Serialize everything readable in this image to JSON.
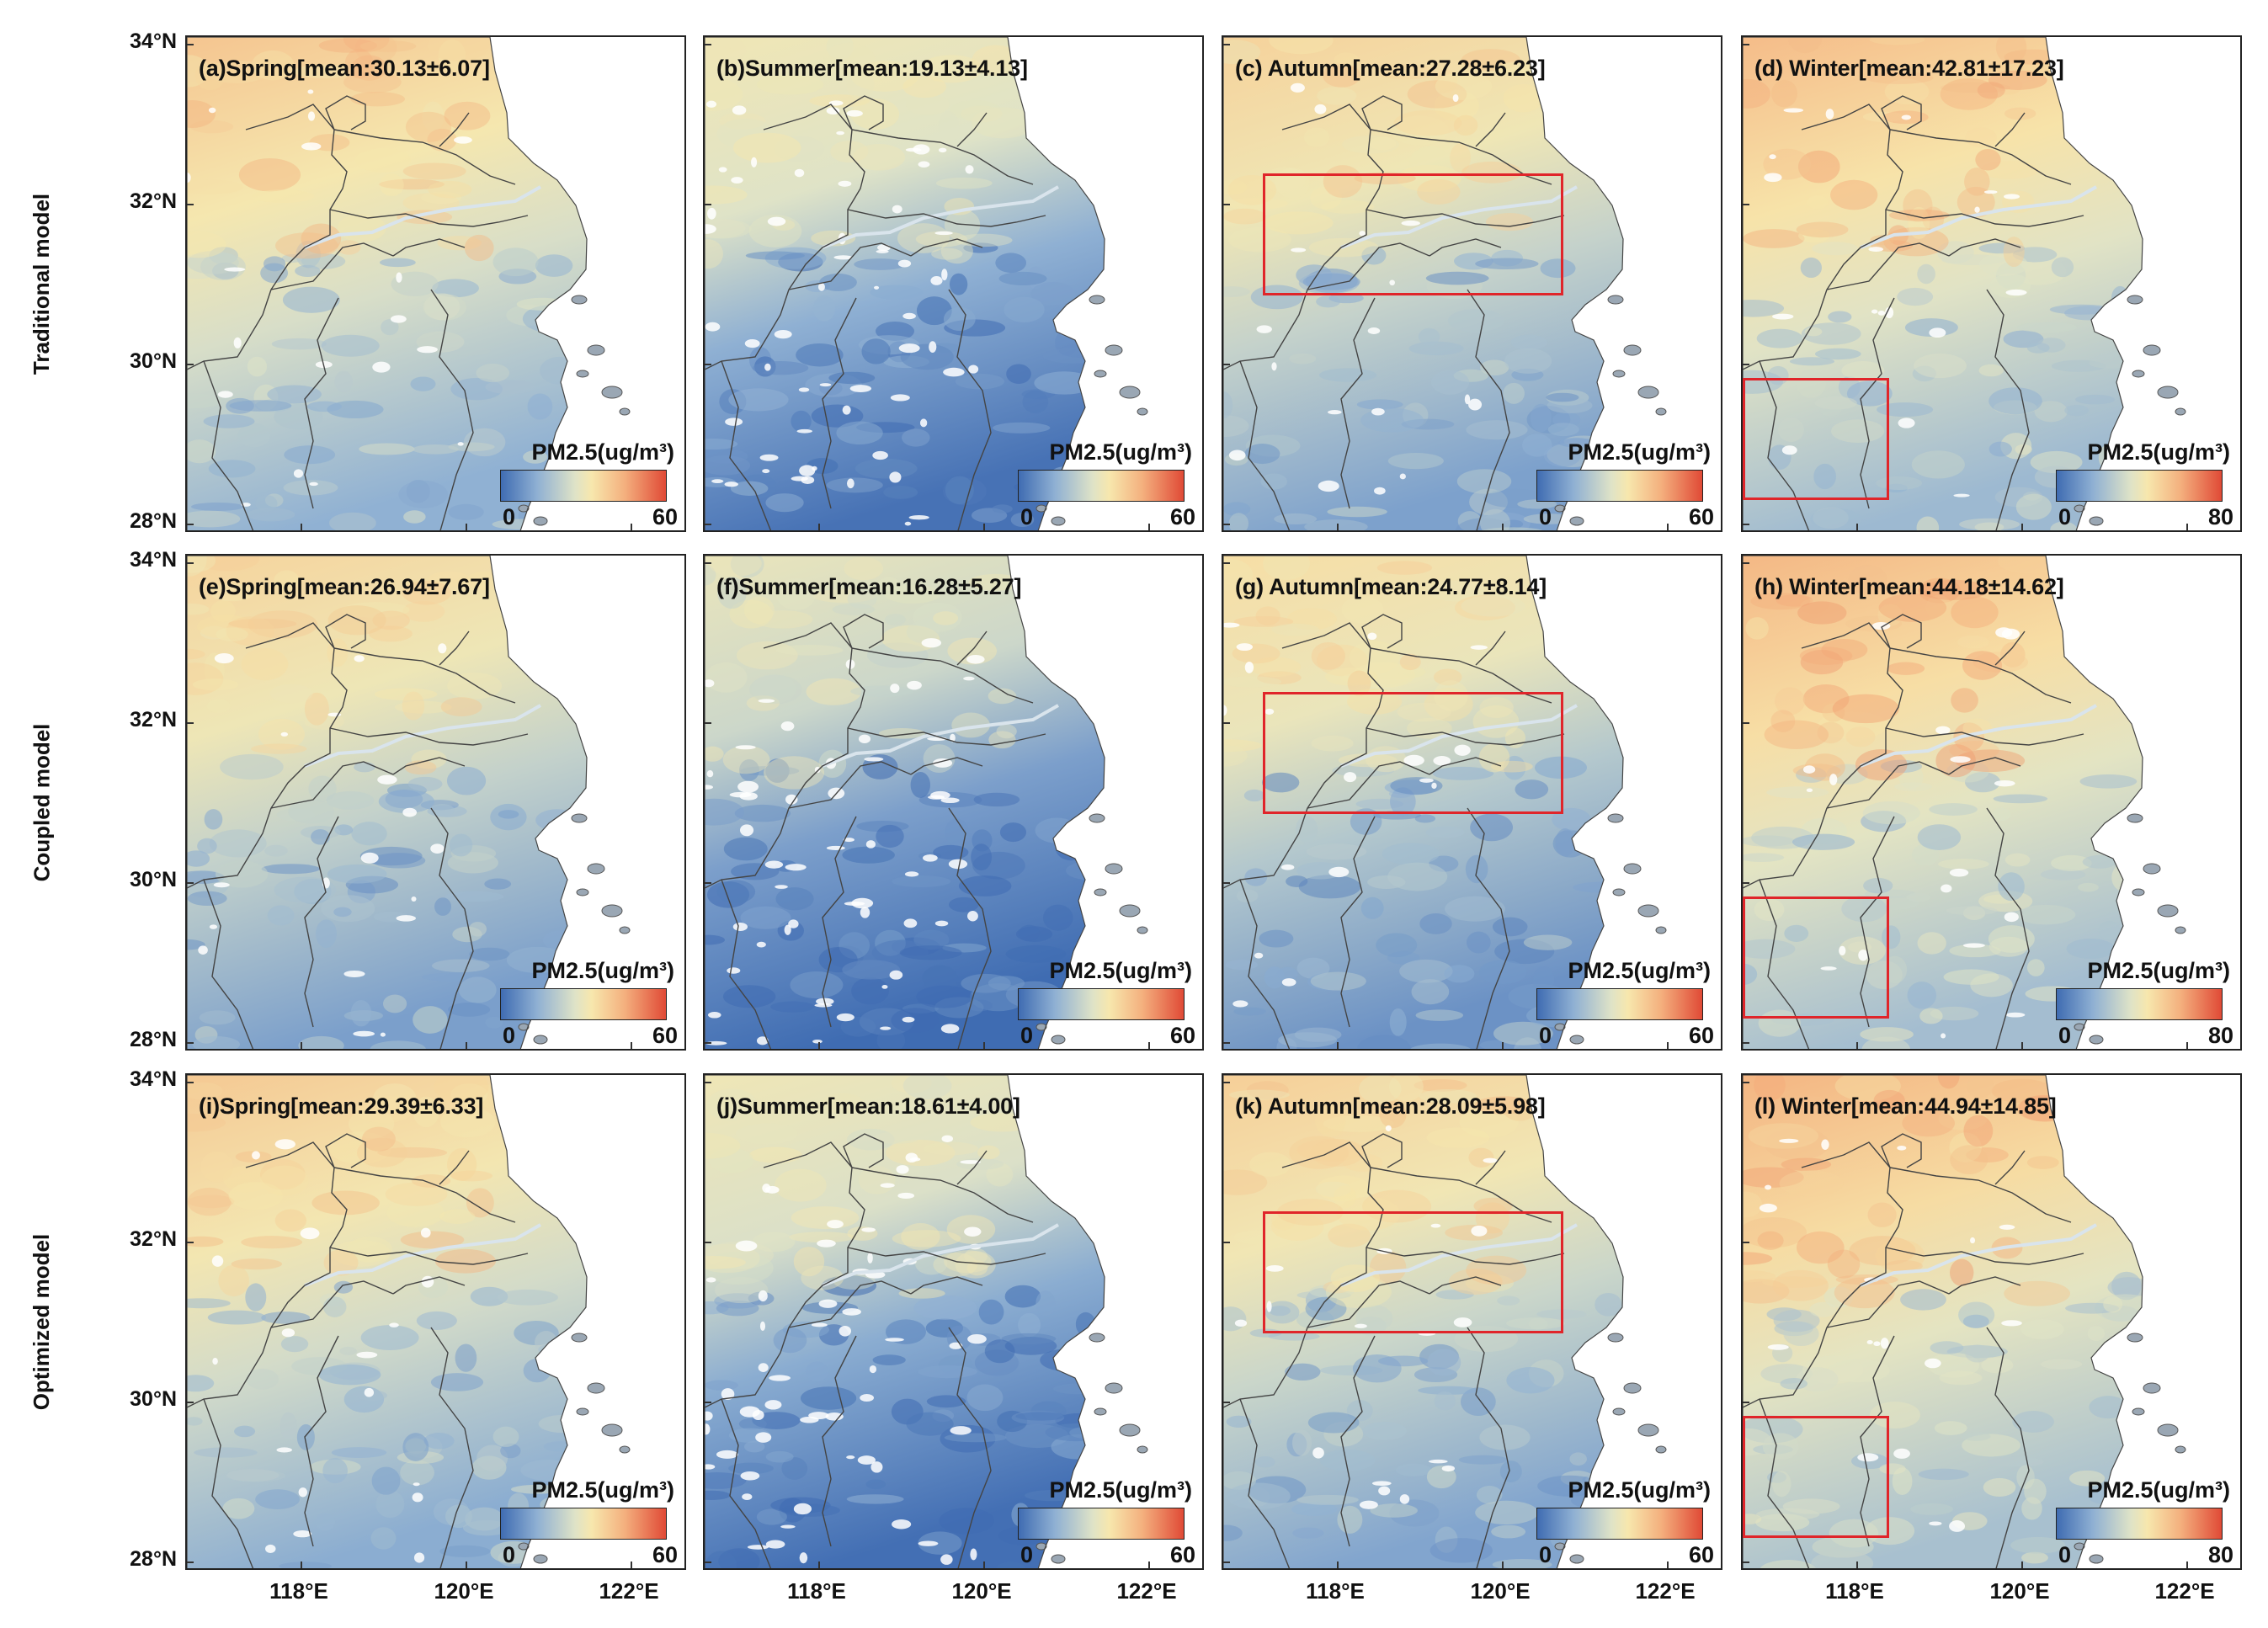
{
  "row_labels": [
    "Traditional model",
    "Coupled model",
    "Optimized model"
  ],
  "lat_labels": [
    "34°N",
    "32°N",
    "30°N",
    "28°N"
  ],
  "lon_labels": [
    "118°E",
    "120°E",
    "122°E"
  ],
  "colorbar": {
    "title": "PM2.5(ug/m³)",
    "seasons": {
      "spring": {
        "min": "0",
        "max": "60"
      },
      "summer": {
        "min": "0",
        "max": "60"
      },
      "autumn": {
        "min": "0",
        "max": "60"
      },
      "winter": {
        "min": "0",
        "max": "80"
      }
    },
    "colors": [
      "#3f6cb2",
      "#8fb0d3",
      "#dfe3c7",
      "#f7e7ad",
      "#f4b07e",
      "#e04a36"
    ]
  },
  "highlight_color": "#e0252a",
  "panels": [
    {
      "title": "(a)Spring[mean:30.13±6.07]",
      "season": "spring",
      "mean": 30.13,
      "std": 6.07
    },
    {
      "title": "(b)Summer[mean:19.13±4.13]",
      "season": "summer",
      "mean": 19.13,
      "std": 4.13
    },
    {
      "title": "(c) Autumn[mean:27.28±6.23]",
      "season": "autumn",
      "mean": 27.28,
      "std": 6.23
    },
    {
      "title": "(d) Winter[mean:42.81±17.23]",
      "season": "winter",
      "mean": 42.81,
      "std": 17.23
    },
    {
      "title": "(e)Spring[mean:26.94±7.67]",
      "season": "spring",
      "mean": 26.94,
      "std": 7.67
    },
    {
      "title": "(f)Summer[mean:16.28±5.27]",
      "season": "summer",
      "mean": 16.28,
      "std": 5.27
    },
    {
      "title": "(g) Autumn[mean:24.77±8.14]",
      "season": "autumn",
      "mean": 24.77,
      "std": 8.14
    },
    {
      "title": "(h) Winter[mean:44.18±14.62]",
      "season": "winter",
      "mean": 44.18,
      "std": 14.62
    },
    {
      "title": "(i)Spring[mean:29.39±6.33]",
      "season": "spring",
      "mean": 29.39,
      "std": 6.33
    },
    {
      "title": "(j)Summer[mean:18.61±4.00]",
      "season": "summer",
      "mean": 18.61,
      "std": 4.0
    },
    {
      "title": "(k) Autumn[mean:28.09±5.98]",
      "season": "autumn",
      "mean": 28.09,
      "std": 5.98
    },
    {
      "title": "(l) Winter[mean:44.94±14.85]",
      "season": "winter",
      "mean": 44.94,
      "std": 14.85
    }
  ]
}
